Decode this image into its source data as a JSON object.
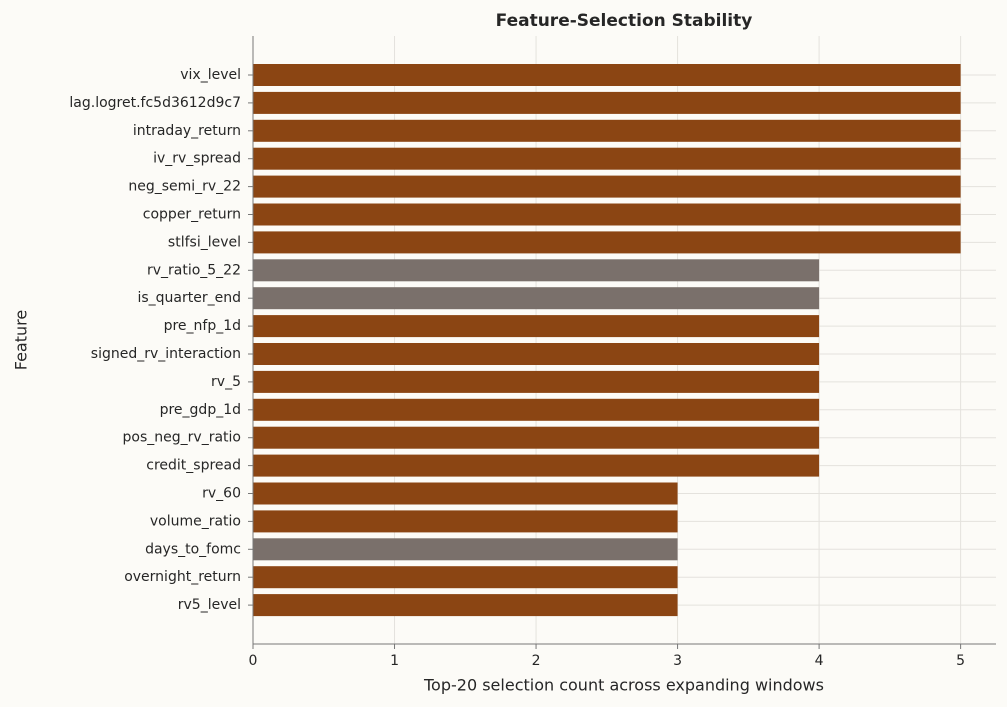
{
  "chart_data": {
    "type": "barh",
    "title": "Feature-Selection Stability",
    "x_label": "Top-20 selection count across expanding windows",
    "y_label": "Feature",
    "categories": [
      "vix_level",
      "lag.logret.fc5d3612d9c7",
      "intraday_return",
      "iv_rv_spread",
      "neg_semi_rv_22",
      "copper_return",
      "stlfsi_level",
      "rv_ratio_5_22",
      "is_quarter_end",
      "pre_nfp_1d",
      "signed_rv_interaction",
      "rv_5",
      "pre_gdp_1d",
      "pos_neg_rv_ratio",
      "credit_spread",
      "rv_60",
      "volume_ratio",
      "days_to_fomc",
      "overnight_return",
      "rv5_level"
    ],
    "values": [
      5,
      5,
      5,
      5,
      5,
      5,
      5,
      4,
      4,
      4,
      4,
      4,
      4,
      4,
      4,
      3,
      3,
      3,
      3,
      3
    ],
    "colors": [
      "#8b4513",
      "#8b4513",
      "#8b4513",
      "#8b4513",
      "#8b4513",
      "#8b4513",
      "#8b4513",
      "#7a706b",
      "#7a706b",
      "#8b4513",
      "#8b4513",
      "#8b4513",
      "#8b4513",
      "#8b4513",
      "#8b4513",
      "#8b4513",
      "#8b4513",
      "#7a706b",
      "#8b4513",
      "#8b4513"
    ],
    "xlim": [
      0,
      5.25
    ],
    "xticks": [
      0,
      1,
      2,
      3,
      4,
      5
    ],
    "grid": true
  }
}
